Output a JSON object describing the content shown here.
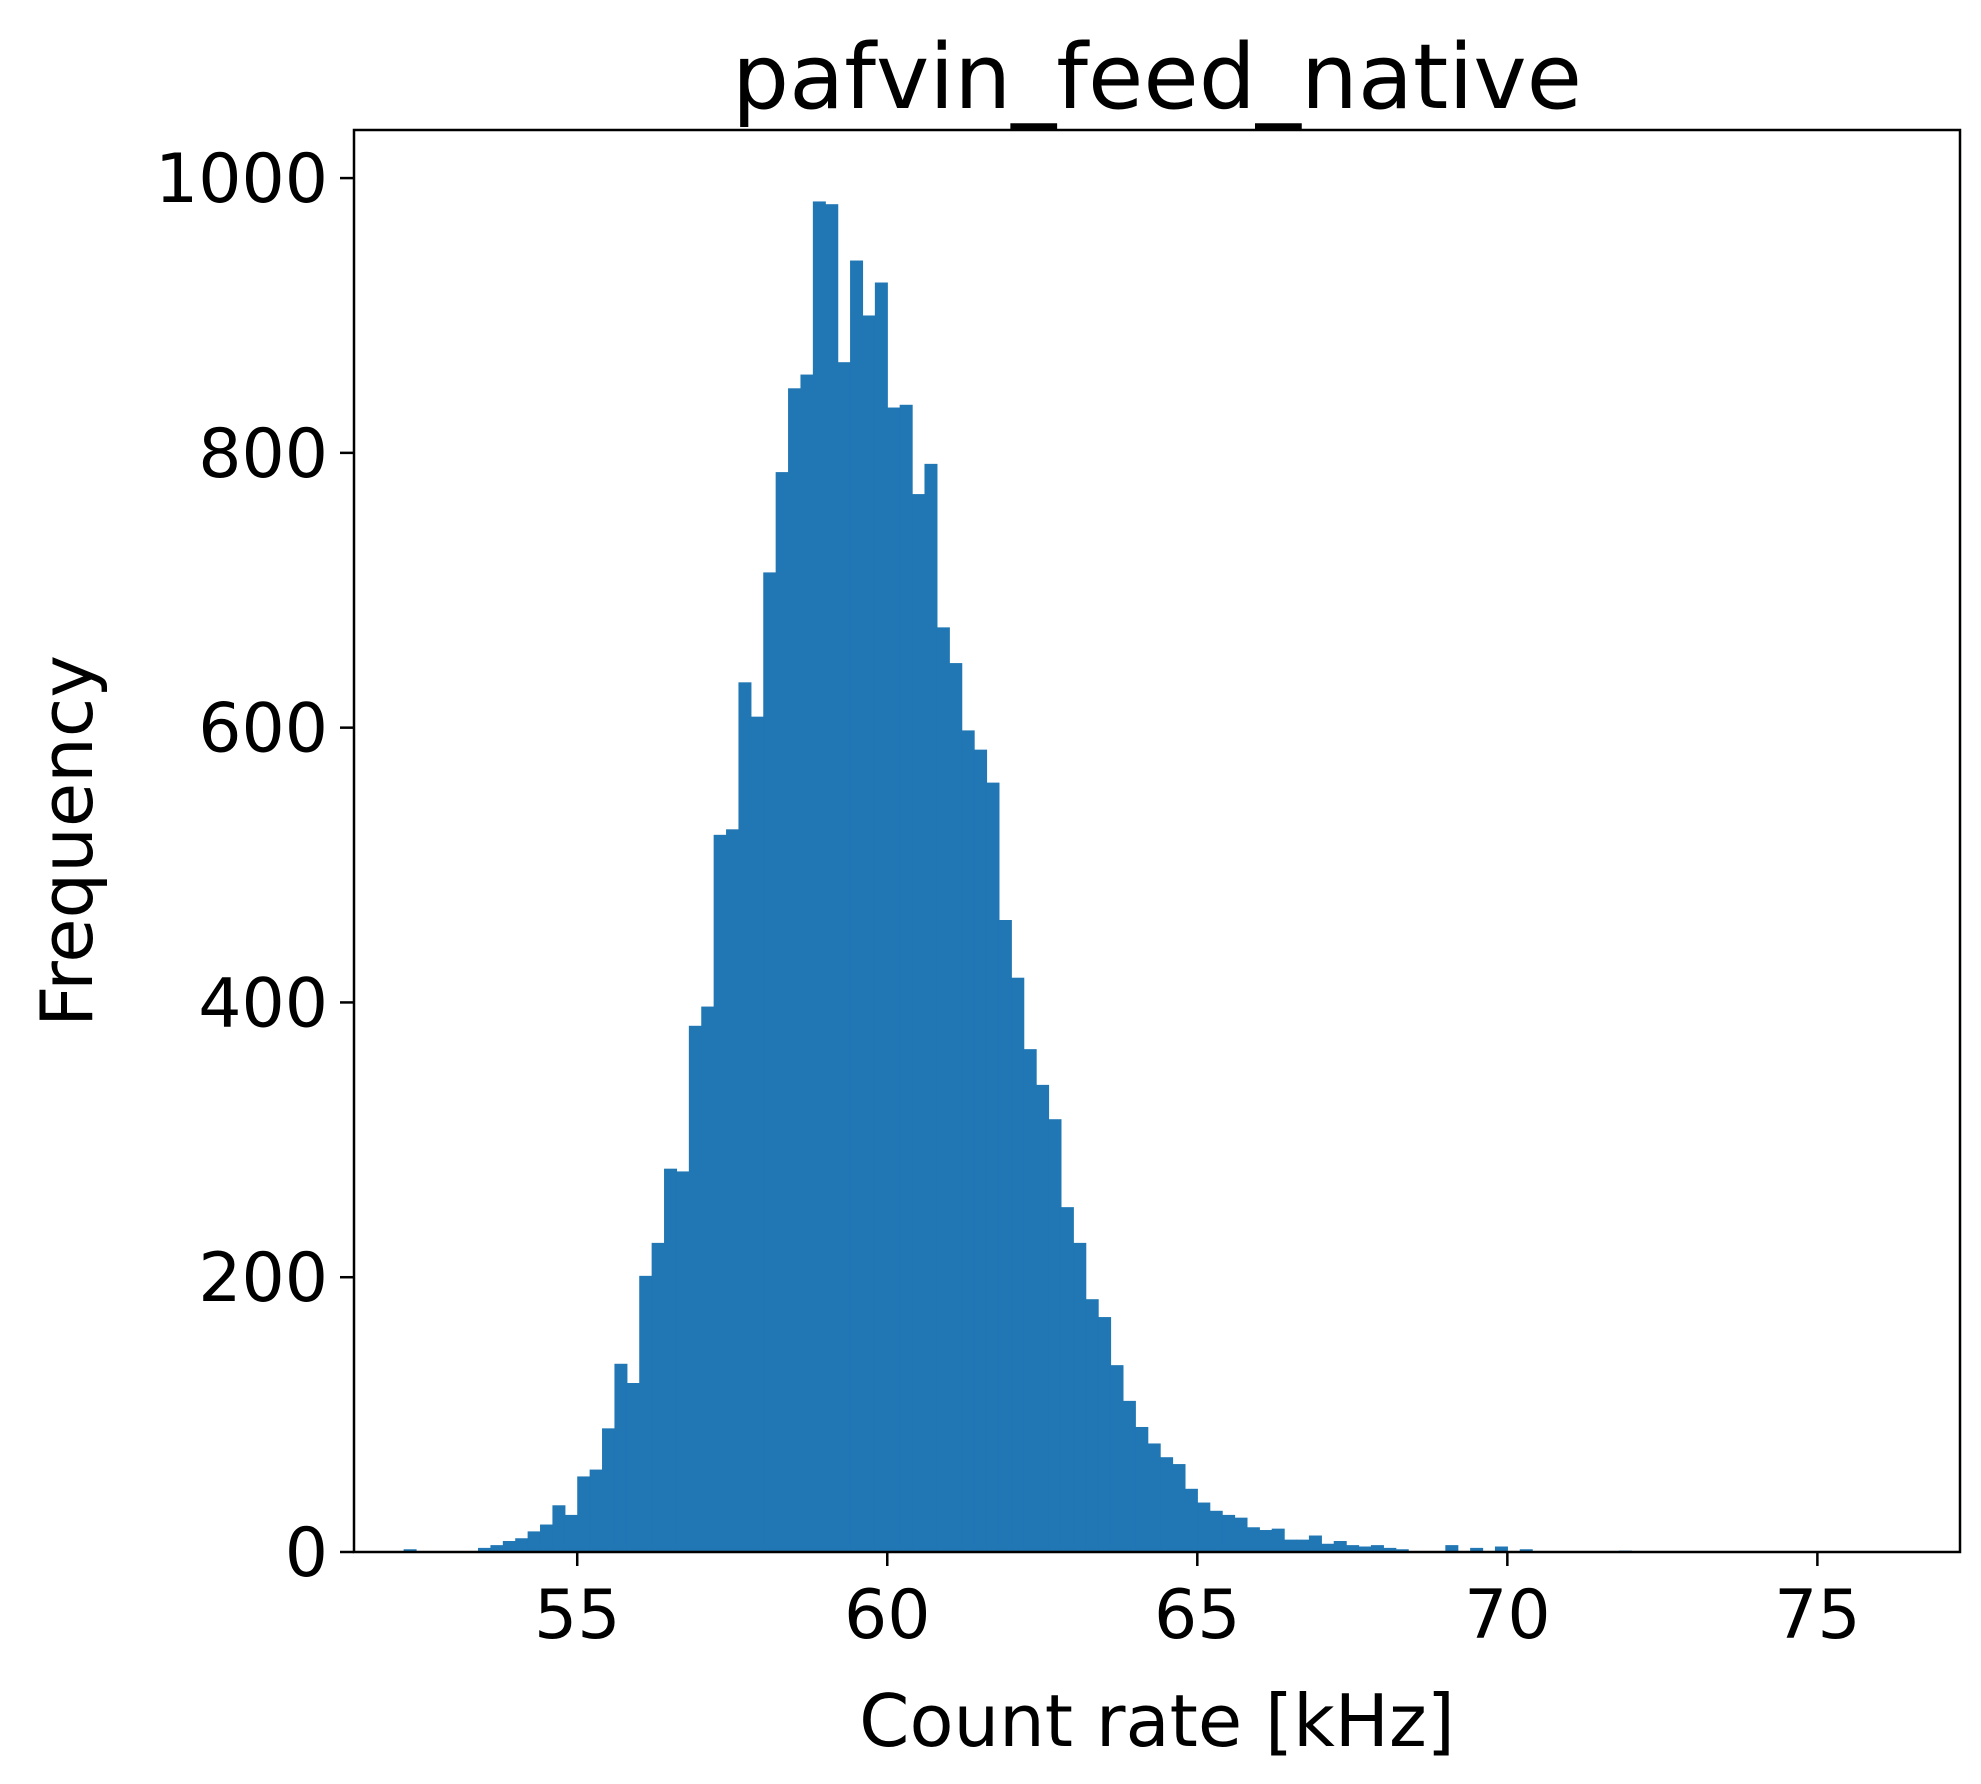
{
  "chart_data": {
    "type": "bar",
    "title": "pafvin_feed_native",
    "xlabel": "Count rate [kHz]",
    "ylabel": "Frequency",
    "xlim": [
      51.4,
      77.3
    ],
    "ylim": [
      0,
      1035
    ],
    "xticks": [
      "55",
      "60",
      "65",
      "70",
      "75"
    ],
    "yticks": [
      "0",
      "200",
      "400",
      "600",
      "800",
      "1000"
    ],
    "bin_start": 52.2,
    "bin_width": 0.2,
    "bar_color": "#2077b4",
    "values": [
      2,
      0,
      0,
      0,
      0,
      0,
      3,
      5,
      8,
      10,
      15,
      20,
      34,
      27,
      55,
      60,
      90,
      137,
      123,
      201,
      225,
      279,
      277,
      383,
      397,
      522,
      526,
      633,
      608,
      713,
      786,
      847,
      857,
      983,
      981,
      866,
      940,
      900,
      924,
      833,
      835,
      770,
      792,
      673,
      647,
      598,
      584,
      560,
      460,
      418,
      366,
      340,
      315,
      251,
      225,
      184,
      171,
      136,
      110,
      91,
      79,
      69,
      64,
      46,
      36,
      30,
      27,
      25,
      18,
      16,
      17,
      9,
      9,
      12,
      6,
      8,
      5,
      4,
      5,
      3,
      2,
      0,
      0,
      0,
      5,
      0,
      3,
      0,
      4,
      0,
      2,
      0,
      0,
      0,
      0,
      0,
      0,
      0,
      1,
      0,
      0,
      0,
      0,
      0,
      0,
      0,
      0,
      0
    ]
  }
}
